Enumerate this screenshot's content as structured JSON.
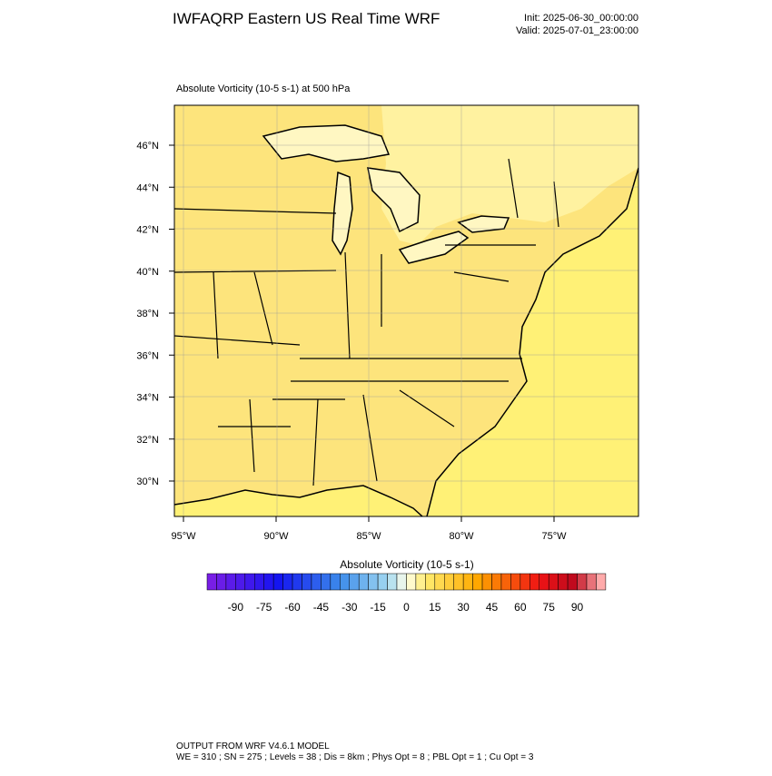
{
  "header": {
    "title": "IWFAQRP Eastern US Real Time WRF",
    "init": "Init: 2025-06-30_00:00:00",
    "valid": "Valid: 2025-07-01_23:00:00"
  },
  "map": {
    "subtitle": "Absolute Vorticity   (10-5 s-1)     at   500 hPa",
    "lat_labels": [
      "46°N",
      "44°N",
      "42°N",
      "40°N",
      "38°N",
      "36°N",
      "34°N",
      "32°N",
      "30°N"
    ],
    "lon_labels": [
      "95°W",
      "90°W",
      "85°W",
      "80°W",
      "75°W"
    ]
  },
  "colorbar": {
    "label": "Absolute Vorticity  (10-5 s-1)",
    "ticks": [
      -90,
      -75,
      -60,
      -45,
      -30,
      -15,
      0,
      15,
      30,
      45,
      60,
      75,
      90
    ]
  },
  "footer": {
    "line1": "OUTPUT FROM WRF V4.6.1 MODEL",
    "line2": "WE = 310 ; SN = 275 ; Levels = 38 ; Dis = 8km ; Phys Opt = 8 ; PBL Opt = 1 ; Cu Opt = 3"
  }
}
